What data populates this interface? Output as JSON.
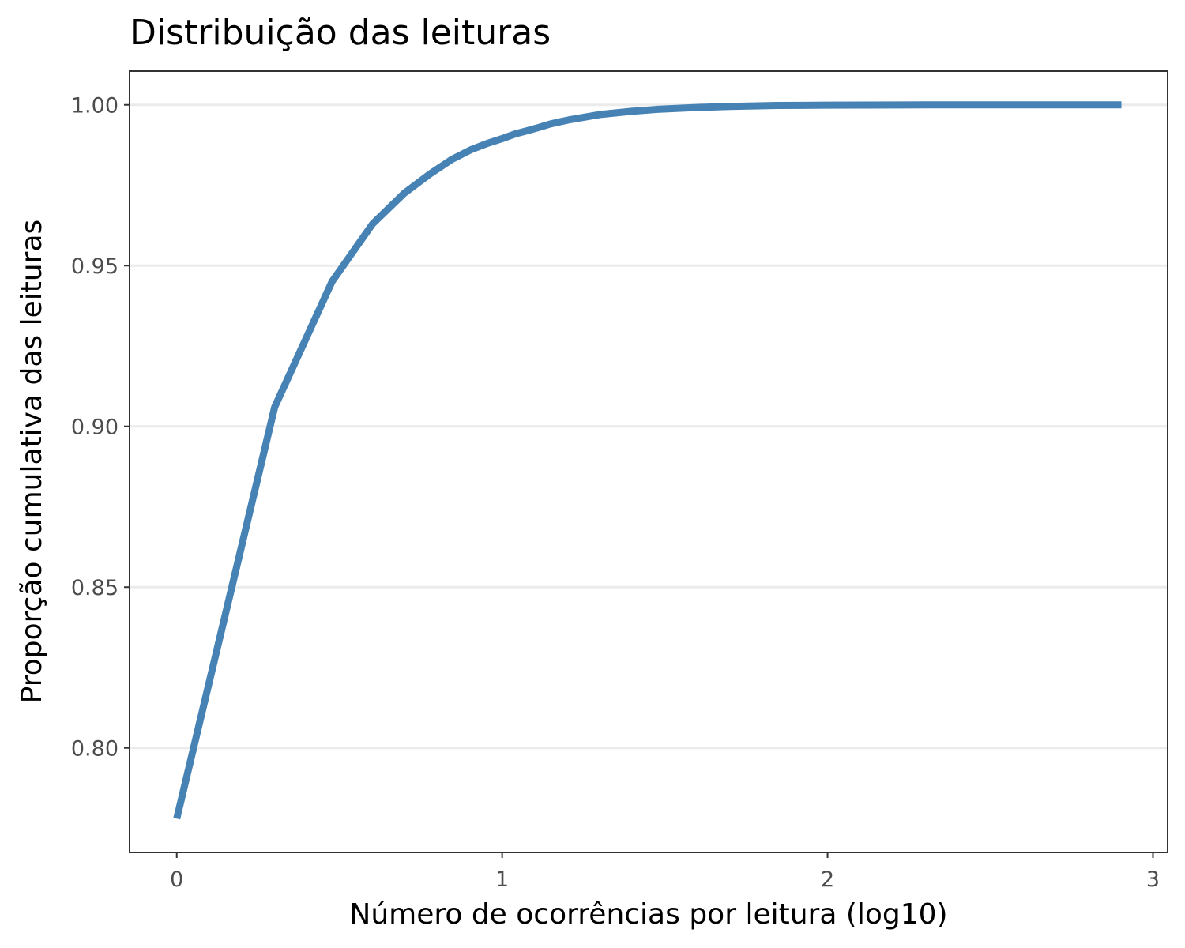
{
  "chart_data": {
    "type": "line",
    "title": "Distribuição das leituras",
    "xlabel": "Número de ocorrências por leitura (log10)",
    "ylabel": "Proporção cumulativa das leituras",
    "xlim": [
      -0.145,
      3.045
    ],
    "ylim": [
      0.7675,
      1.0105
    ],
    "x_ticks": [
      0,
      1,
      2,
      3
    ],
    "x_tick_labels": [
      "0",
      "1",
      "2",
      "3"
    ],
    "y_ticks": [
      0.8,
      0.85,
      0.9,
      0.95,
      1.0
    ],
    "y_tick_labels": [
      "0.80",
      "0.85",
      "0.90",
      "0.95",
      "1.00"
    ],
    "grid": "horizontal major",
    "series": [
      {
        "color": "#4682B4",
        "x": [
          0,
          0.301,
          0.477,
          0.602,
          0.699,
          0.778,
          0.845,
          0.903,
          0.954,
          1.0,
          1.041,
          1.079,
          1.114,
          1.146,
          1.176,
          1.204,
          1.255,
          1.301,
          1.398,
          1.477,
          1.602,
          1.699,
          1.845,
          2.0,
          2.301,
          2.602,
          2.903
        ],
        "y": [
          0.778,
          0.906,
          0.945,
          0.963,
          0.9725,
          0.9785,
          0.983,
          0.986,
          0.988,
          0.9895,
          0.991,
          0.992,
          0.993,
          0.994,
          0.9947,
          0.9953,
          0.9962,
          0.997,
          0.998,
          0.9986,
          0.9992,
          0.9995,
          0.9998,
          0.9999,
          1.0,
          1.0,
          1.0
        ]
      }
    ]
  },
  "colors": {
    "line": "#4682B4",
    "grid": "#ebebeb",
    "panel_border": "#333333",
    "tick_text": "#4d4d4d"
  }
}
